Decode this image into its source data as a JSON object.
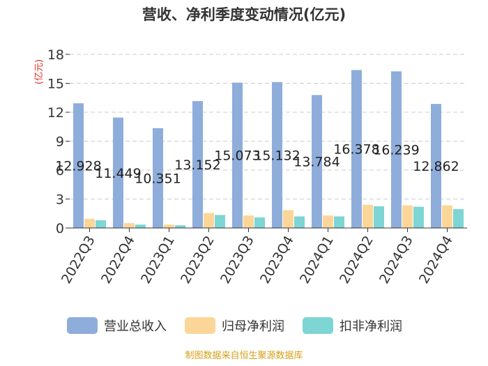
{
  "chart_data": {
    "type": "bar",
    "title": "营收、净利季度变动情况(亿元)",
    "ylabel": "(亿元)",
    "categories": [
      "2022Q3",
      "2022Q4",
      "2023Q1",
      "2023Q2",
      "2023Q3",
      "2023Q4",
      "2024Q1",
      "2024Q2",
      "2024Q3",
      "2024Q4"
    ],
    "series": [
      {
        "name": "营业总收入",
        "color": "#8eaddb",
        "values": [
          12.928,
          11.449,
          10.351,
          13.152,
          15.073,
          15.132,
          13.784,
          16.378,
          16.239,
          12.862
        ]
      },
      {
        "name": "归母净利润",
        "color": "#fcd699",
        "values": [
          0.95,
          0.5,
          0.35,
          1.55,
          1.3,
          1.85,
          1.3,
          2.4,
          2.35,
          2.35
        ]
      },
      {
        "name": "扣非净利润",
        "color": "#7dd5d4",
        "values": [
          0.8,
          0.35,
          0.28,
          1.35,
          1.1,
          1.2,
          1.2,
          2.25,
          2.2,
          1.95
        ]
      }
    ],
    "data_labels": [
      "12.928",
      "11.449",
      "10.351",
      "13.152",
      "15.073",
      "15.132",
      "13.784",
      "16.378",
      "16.239",
      "12.862"
    ],
    "yticks": [
      "0",
      "3",
      "6",
      "9",
      "12",
      "15",
      "18"
    ],
    "ylim": [
      0,
      18
    ],
    "grid": true,
    "legend_position": "bottom"
  },
  "footer": "制图数据来自恒生聚源数据库"
}
